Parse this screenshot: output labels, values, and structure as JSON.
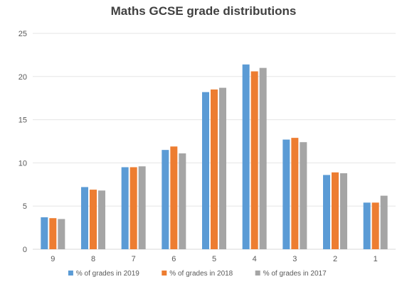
{
  "chart_data": {
    "type": "bar",
    "title": "Maths GCSE grade distributions",
    "xlabel": "",
    "ylabel": "",
    "ylim": [
      0,
      25
    ],
    "yticks": [
      0,
      5,
      10,
      15,
      20,
      25
    ],
    "grid": true,
    "legend_position": "bottom",
    "categories": [
      "9",
      "8",
      "7",
      "6",
      "5",
      "4",
      "3",
      "2",
      "1"
    ],
    "series": [
      {
        "name": "% of grades in 2019",
        "color": "#5B9BD5",
        "values": [
          3.7,
          7.2,
          9.5,
          11.5,
          18.2,
          21.4,
          12.7,
          8.6,
          5.4
        ]
      },
      {
        "name": "% of grades in 2018",
        "color": "#ED7D31",
        "values": [
          3.6,
          6.9,
          9.5,
          11.9,
          18.5,
          20.6,
          12.9,
          8.9,
          5.4
        ]
      },
      {
        "name": "% of grades in 2017",
        "color": "#A5A5A5",
        "values": [
          3.5,
          6.8,
          9.6,
          11.1,
          18.7,
          21.0,
          12.4,
          8.8,
          6.2
        ]
      }
    ]
  }
}
